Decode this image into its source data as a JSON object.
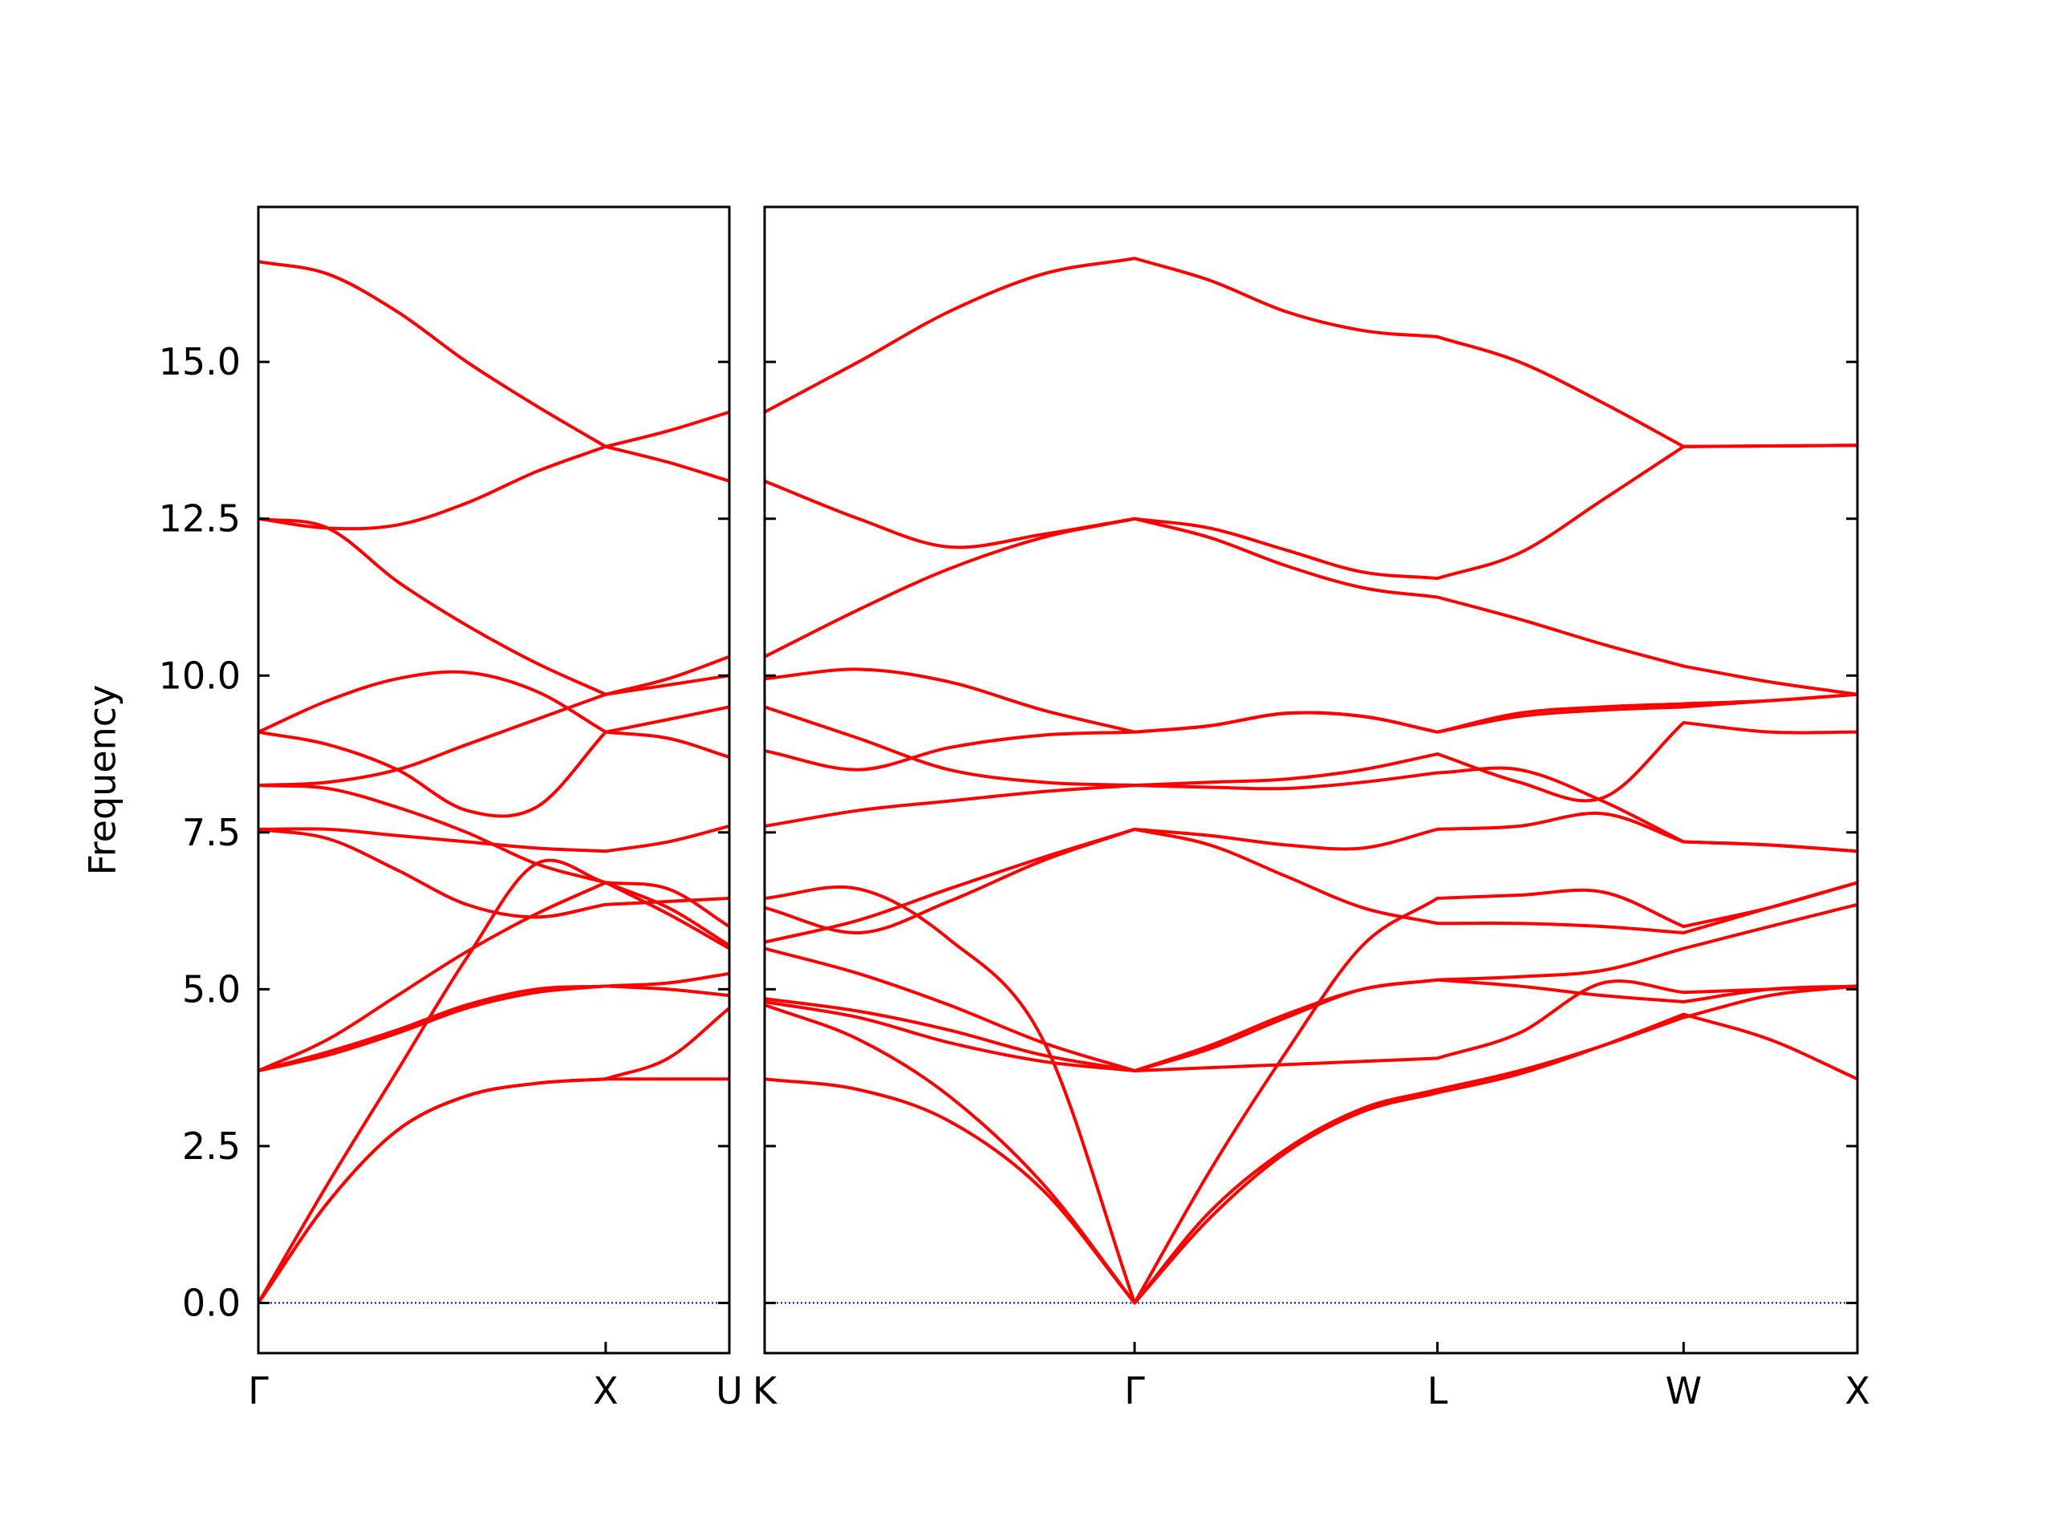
{
  "chart_data": [
    {
      "type": "line",
      "ylabel": "Frequency",
      "color": "#ff0000",
      "x": [
        0,
        0.2,
        0.4,
        0.6,
        0.8,
        1.0,
        1.18,
        1.356
      ],
      "series": [
        {
          "values": [
            0,
            1.6,
            2.75,
            3.3,
            3.5,
            3.57,
            3.57,
            3.57
          ]
        },
        {
          "values": [
            0,
            1.9,
            3.7,
            5.5,
            7.0,
            6.7,
            6.3,
            5.7
          ]
        },
        {
          "values": [
            0,
            1.6,
            2.75,
            3.3,
            3.5,
            3.57,
            3.9,
            4.7
          ]
        },
        {
          "values": [
            3.7,
            4.0,
            4.35,
            4.75,
            5.0,
            5.05,
            5.1,
            5.25
          ]
        },
        {
          "values": [
            3.7,
            3.95,
            4.3,
            4.7,
            4.95,
            5.05,
            5.0,
            4.9
          ]
        },
        {
          "values": [
            3.7,
            4.2,
            4.9,
            5.6,
            6.2,
            6.7,
            6.6,
            6.0
          ]
        },
        {
          "values": [
            7.55,
            7.4,
            6.9,
            6.35,
            6.15,
            6.35,
            6.4,
            6.45
          ]
        },
        {
          "values": [
            7.55,
            7.55,
            7.45,
            7.35,
            7.25,
            7.2,
            7.35,
            7.6
          ]
        },
        {
          "values": [
            8.25,
            8.2,
            7.9,
            7.5,
            7.0,
            6.7,
            6.2,
            5.65
          ]
        },
        {
          "values": [
            8.25,
            8.3,
            8.5,
            8.9,
            9.3,
            9.7,
            9.85,
            10.0
          ]
        },
        {
          "values": [
            9.1,
            8.9,
            8.5,
            7.85,
            7.9,
            9.1,
            9.0,
            8.7
          ]
        },
        {
          "values": [
            9.1,
            9.6,
            9.95,
            10.05,
            9.75,
            9.1,
            9.3,
            9.5
          ]
        },
        {
          "values": [
            12.5,
            12.35,
            11.5,
            10.8,
            10.2,
            9.7,
            9.95,
            10.3
          ]
        },
        {
          "values": [
            12.5,
            12.35,
            12.4,
            12.75,
            13.25,
            13.65,
            13.4,
            13.1
          ]
        },
        {
          "values": [
            16.6,
            16.4,
            15.8,
            15.0,
            14.3,
            13.65,
            13.9,
            14.2
          ]
        }
      ],
      "xlim": [
        0,
        1.356
      ],
      "xticks": [
        {
          "value": 0,
          "label": "Γ"
        },
        {
          "value": 1.0,
          "label": "X"
        },
        {
          "value": 1.356,
          "label": "U"
        }
      ],
      "ylim": [
        -0.8,
        17.47
      ],
      "yticks": [
        {
          "value": 0,
          "label": "0.0"
        },
        {
          "value": 2.5,
          "label": "2.5"
        },
        {
          "value": 5,
          "label": "5.0"
        },
        {
          "value": 7.5,
          "label": "7.5"
        },
        {
          "value": 10,
          "label": "10.0"
        },
        {
          "value": 12.5,
          "label": "12.5"
        },
        {
          "value": 15,
          "label": "15.0"
        }
      ],
      "hline": 0,
      "hline_color": "#0000cc"
    },
    {
      "type": "line",
      "color": "#ff0000",
      "x": [
        0,
        0.27,
        0.53,
        0.8,
        1.064,
        1.28,
        1.5,
        1.72,
        1.935,
        2.17,
        2.41,
        2.643,
        2.89,
        3.143
      ],
      "series": [
        {
          "values": [
            3.57,
            3.4,
            2.9,
            1.8,
            0,
            1.35,
            2.4,
            3.05,
            3.35,
            3.65,
            4.1,
            4.6,
            4.2,
            3.57
          ]
        },
        {
          "values": [
            4.75,
            4.2,
            3.3,
            1.9,
            0,
            1.45,
            2.45,
            3.1,
            3.4,
            3.7,
            4.1,
            4.55,
            4.9,
            5.05
          ]
        },
        {
          "values": [
            6.45,
            6.6,
            5.8,
            4.2,
            0,
            2.1,
            4.0,
            5.7,
            6.45,
            6.5,
            6.55,
            6.0,
            6.3,
            6.7
          ]
        },
        {
          "values": [
            4.8,
            4.55,
            4.15,
            3.85,
            3.7,
            3.75,
            3.8,
            3.85,
            3.9,
            4.3,
            5.1,
            4.95,
            5.0,
            5.05
          ]
        },
        {
          "values": [
            4.85,
            4.65,
            4.35,
            3.95,
            3.7,
            4.05,
            4.55,
            5.0,
            5.15,
            5.2,
            5.3,
            5.65,
            6.0,
            6.35
          ]
        },
        {
          "values": [
            5.65,
            5.25,
            4.75,
            4.15,
            3.7,
            4.1,
            4.6,
            5.0,
            5.15,
            5.05,
            4.9,
            4.8,
            5.0,
            5.05
          ]
        },
        {
          "values": [
            5.75,
            6.1,
            6.6,
            7.1,
            7.55,
            7.3,
            6.8,
            6.3,
            6.05,
            6.05,
            6.0,
            5.9,
            6.3,
            6.7
          ]
        },
        {
          "values": [
            6.3,
            5.9,
            6.4,
            7.05,
            7.55,
            7.45,
            7.3,
            7.25,
            7.55,
            7.6,
            7.8,
            7.35,
            7.3,
            7.2
          ]
        },
        {
          "values": [
            8.8,
            8.5,
            8.85,
            9.05,
            9.1,
            9.2,
            9.4,
            9.35,
            9.1,
            9.4,
            9.5,
            9.55,
            9.6,
            9.7
          ]
        },
        {
          "values": [
            7.6,
            7.85,
            8.0,
            8.15,
            8.25,
            8.3,
            8.35,
            8.5,
            8.75,
            8.3,
            8.05,
            9.25,
            9.1,
            9.1
          ]
        },
        {
          "values": [
            9.5,
            9.0,
            8.5,
            8.3,
            8.25,
            8.22,
            8.2,
            8.3,
            8.45,
            8.5,
            8.0,
            7.35,
            7.3,
            7.2
          ]
        },
        {
          "values": [
            9.95,
            10.1,
            9.9,
            9.45,
            9.1,
            9.2,
            9.4,
            9.35,
            9.1,
            9.35,
            9.45,
            9.5,
            9.6,
            9.7
          ]
        },
        {
          "values": [
            10.3,
            11.05,
            11.7,
            12.2,
            12.5,
            12.2,
            11.75,
            11.4,
            11.25,
            10.9,
            10.5,
            10.15,
            9.9,
            9.7
          ]
        },
        {
          "values": [
            13.1,
            12.5,
            12.05,
            12.25,
            12.5,
            12.35,
            12.0,
            11.65,
            11.55,
            11.95,
            12.8,
            13.65,
            13.66,
            13.67
          ]
        },
        {
          "values": [
            14.2,
            15.0,
            15.8,
            16.4,
            16.65,
            16.3,
            15.8,
            15.5,
            15.4,
            15.0,
            14.35,
            13.65,
            13.66,
            13.67
          ]
        }
      ],
      "xlim": [
        0,
        3.143
      ],
      "xticks": [
        {
          "value": 0,
          "label": "K"
        },
        {
          "value": 1.064,
          "label": "Γ"
        },
        {
          "value": 1.935,
          "label": "L"
        },
        {
          "value": 2.643,
          "label": "W"
        },
        {
          "value": 3.143,
          "label": "X"
        }
      ],
      "ylim": [
        -0.8,
        17.47
      ],
      "yticks": [
        0,
        2.5,
        5,
        7.5,
        10,
        12.5,
        15
      ],
      "hline": 0,
      "hline_color": "#0000cc"
    }
  ]
}
